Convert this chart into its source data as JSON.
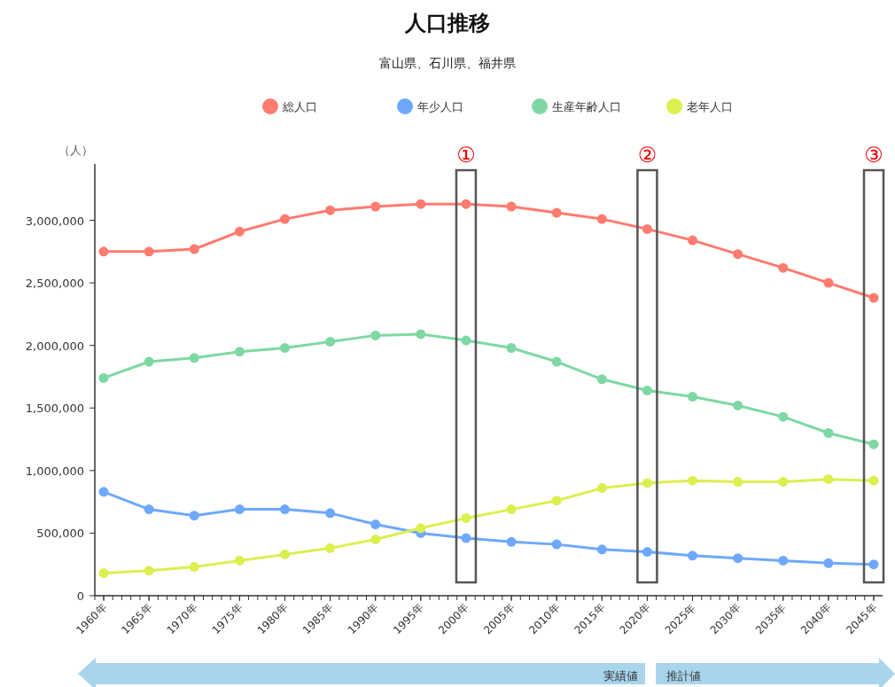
{
  "chart_data": {
    "type": "line",
    "title": "人口推移",
    "subtitle": "富山県、石川県、福井県",
    "ylabel": "（人）",
    "categories": [
      "1960年",
      "1965年",
      "1970年",
      "1975年",
      "1980年",
      "1985年",
      "1990年",
      "1995年",
      "2000年",
      "2005年",
      "2010年",
      "2015年",
      "2020年",
      "2025年",
      "2030年",
      "2035年",
      "2040年",
      "2045年"
    ],
    "series": [
      {
        "name": "総人口",
        "color": "#ff7b6f",
        "values": [
          2750000,
          2750000,
          2770000,
          2910000,
          3010000,
          3080000,
          3110000,
          3130000,
          3130000,
          3110000,
          3060000,
          3010000,
          2930000,
          2840000,
          2730000,
          2620000,
          2500000,
          2380000
        ]
      },
      {
        "name": "年少人口",
        "color": "#6ea8fe",
        "values": [
          830000,
          690000,
          640000,
          690000,
          690000,
          660000,
          570000,
          500000,
          460000,
          430000,
          410000,
          370000,
          350000,
          320000,
          300000,
          280000,
          260000,
          250000
        ]
      },
      {
        "name": "生産年齢人口",
        "color": "#7ed8a4",
        "values": [
          1740000,
          1870000,
          1900000,
          1950000,
          1980000,
          2030000,
          2080000,
          2090000,
          2040000,
          1980000,
          1870000,
          1730000,
          1640000,
          1590000,
          1520000,
          1430000,
          1300000,
          1210000
        ]
      },
      {
        "name": "老年人口",
        "color": "#dcef4f",
        "values": [
          180000,
          200000,
          230000,
          280000,
          330000,
          380000,
          450000,
          540000,
          620000,
          690000,
          760000,
          860000,
          900000,
          920000,
          910000,
          910000,
          930000,
          920000
        ]
      }
    ],
    "ylim": [
      0,
      3450000
    ],
    "yticks": [
      {
        "value": 0,
        "label": "0"
      },
      {
        "value": 500000,
        "label": "500,000"
      },
      {
        "value": 1000000,
        "label": "1,000,000"
      },
      {
        "value": 1500000,
        "label": "1,500,000"
      },
      {
        "value": 2000000,
        "label": "2,000,000"
      },
      {
        "value": 2500000,
        "label": "2,500,000"
      },
      {
        "value": 3000000,
        "label": "3,000,000"
      }
    ],
    "grid": false,
    "legend": "top",
    "marker": "circle",
    "line_style": "solid",
    "annotations": [
      "①",
      "②",
      "③",
      "実績値",
      "推計値"
    ]
  }
}
